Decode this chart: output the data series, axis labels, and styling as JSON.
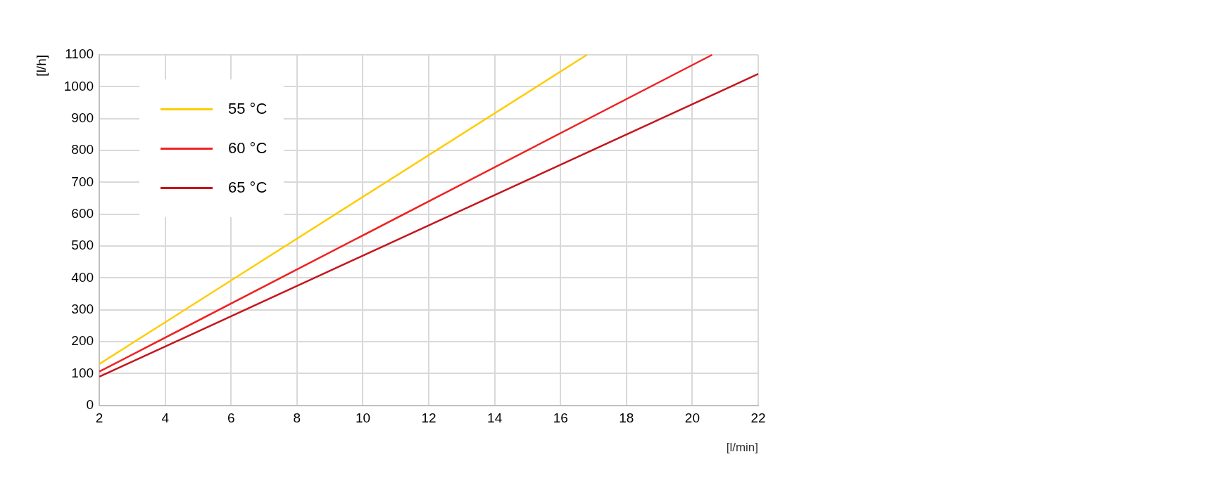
{
  "chart_data": {
    "type": "line",
    "xlabel": "[l/min]",
    "ylabel": "[l/h]",
    "xlim": [
      2,
      22
    ],
    "xticks": [
      2,
      4,
      6,
      8,
      10,
      12,
      14,
      16,
      18,
      20,
      22
    ],
    "ylim": [
      0,
      1100
    ],
    "yticks": [
      0,
      100,
      200,
      300,
      400,
      500,
      600,
      700,
      800,
      900,
      1000,
      1100
    ],
    "grid": true,
    "legend": "top left",
    "marker": "none",
    "line_style": "solid",
    "series": [
      {
        "name": "55 °C",
        "color": "#ffcc00",
        "x": [
          2,
          16.8
        ],
        "values": [
          130,
          1100
        ]
      },
      {
        "name": "60 °C",
        "color": "#ee2222",
        "x": [
          2,
          20.6
        ],
        "values": [
          106,
          1100
        ]
      },
      {
        "name": "65 °C",
        "color": "#c4161c",
        "x": [
          2,
          22
        ],
        "values": [
          90,
          1040
        ]
      }
    ]
  }
}
